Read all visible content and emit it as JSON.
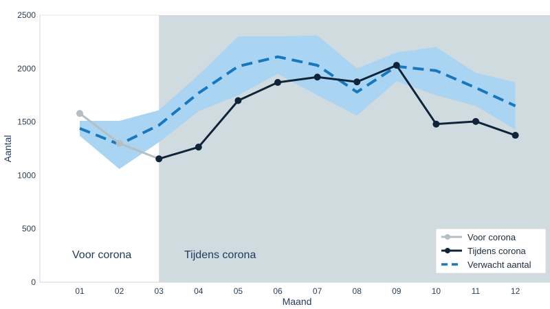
{
  "chart_data": {
    "type": "line",
    "xlabel": "Maand",
    "ylabel": "Aantal",
    "categories": [
      "01",
      "02",
      "03",
      "04",
      "05",
      "06",
      "07",
      "08",
      "09",
      "10",
      "11",
      "12"
    ],
    "ylim": [
      0,
      2500
    ],
    "yticks": [
      0,
      500,
      1000,
      1500,
      2000,
      2500
    ],
    "shaded_region": {
      "label": "Tijdens corona",
      "from": "03",
      "color": "#d0dbdf"
    },
    "unshaded_label": "Voor corona",
    "band": {
      "color": "#a9d4f2",
      "upper": [
        1510,
        1510,
        1610,
        1940,
        2300,
        2300,
        2310,
        2000,
        2150,
        2200,
        1960,
        1870
      ],
      "lower": [
        1370,
        1060,
        1310,
        1600,
        1750,
        1950,
        1750,
        1560,
        1880,
        1750,
        1650,
        1430
      ]
    },
    "series": [
      {
        "name": "Voor corona",
        "color": "#b4bec3",
        "style": "solid-marker",
        "x": [
          "01",
          "02",
          "03"
        ],
        "values": [
          1580,
          1300,
          1155
        ]
      },
      {
        "name": "Tijdens corona",
        "color": "#0f2438",
        "style": "solid-marker",
        "x": [
          "03",
          "04",
          "05",
          "06",
          "07",
          "08",
          "09",
          "10",
          "11",
          "12"
        ],
        "values": [
          1155,
          1265,
          1700,
          1870,
          1920,
          1875,
          2030,
          1480,
          1505,
          1375
        ]
      },
      {
        "name": "Verwacht aantal",
        "color": "#1478c2",
        "style": "dashed",
        "x": [
          "01",
          "02",
          "03",
          "04",
          "05",
          "06",
          "07",
          "08",
          "09",
          "10",
          "11",
          "12"
        ],
        "values": [
          1440,
          1290,
          1470,
          1770,
          2020,
          2110,
          2030,
          1780,
          2020,
          1980,
          1820,
          1650
        ]
      }
    ],
    "legend_position": "bottom-right"
  }
}
